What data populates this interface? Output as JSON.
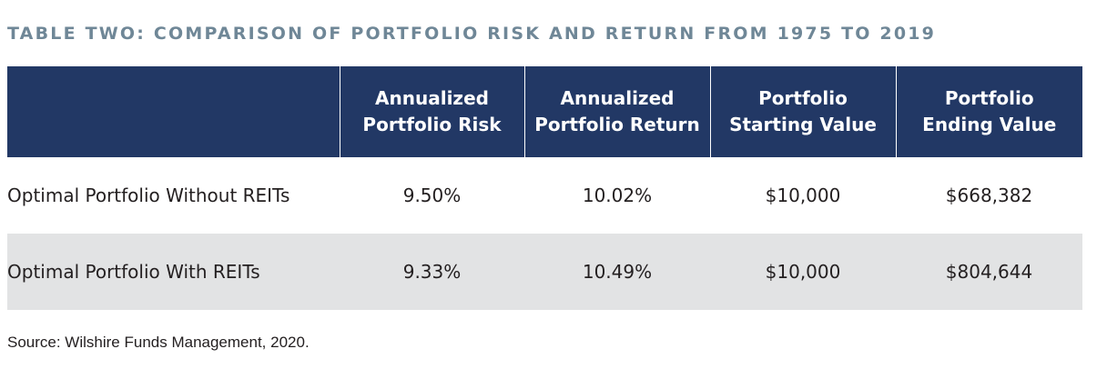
{
  "title": "TABLE TWO: COMPARISON OF PORTFOLIO RISK AND RETURN FROM 1975 TO 2019",
  "table": {
    "headers": [
      {
        "line1": "",
        "line2": ""
      },
      {
        "line1": "Annualized",
        "line2": "Portfolio Risk"
      },
      {
        "line1": "Annualized",
        "line2": "Portfolio Return"
      },
      {
        "line1": "Portfolio",
        "line2": "Starting Value"
      },
      {
        "line1": "Portfolio",
        "line2": "Ending Value"
      }
    ],
    "rows": [
      {
        "label": "Optimal Portfolio Without REITs",
        "risk": "9.50%",
        "return": "10.02%",
        "start": "$10,000",
        "end": "$668,382"
      },
      {
        "label": "Optimal Portfolio With REITs",
        "risk": "9.33%",
        "return": "10.49%",
        "start": "$10,000",
        "end": "$804,644"
      }
    ]
  },
  "source": "Source: Wilshire Funds Management, 2020.",
  "colors": {
    "title": "#6f8797",
    "header_bg": "#223865",
    "header_text": "#ffffff",
    "shaded_row": "#e2e3e4",
    "body_text": "#231f20"
  }
}
